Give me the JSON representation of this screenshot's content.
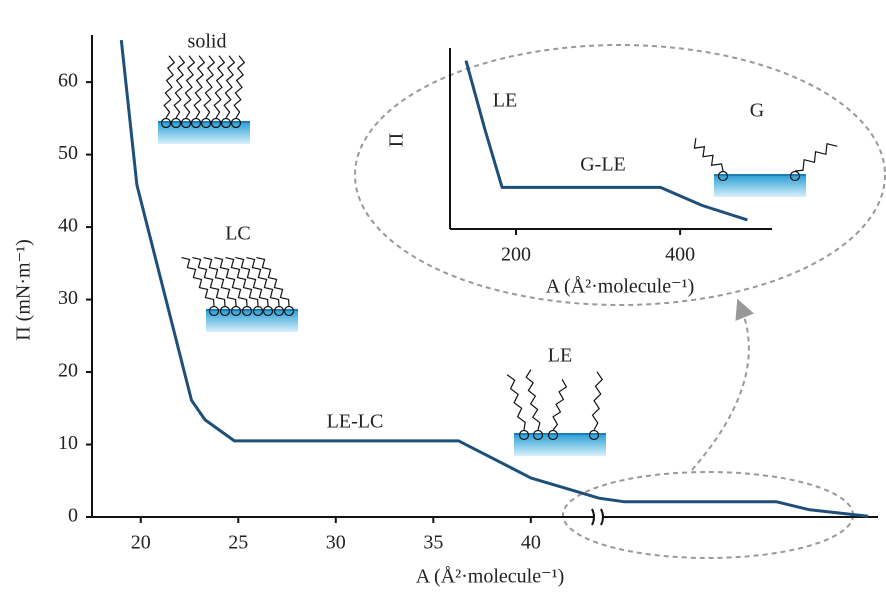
{
  "chart_data": [
    {
      "type": "line",
      "x_label": "A (Å²·molecule⁻¹)",
      "y_label": "Π (mN·m⁻¹)",
      "xlim": [
        17.5,
        57.8
      ],
      "ylim": [
        0,
        66.5
      ],
      "xticks": [
        20,
        25,
        30,
        35,
        40
      ],
      "yticks": [
        0,
        10,
        20,
        30,
        40,
        50,
        60
      ],
      "annotations": [
        "solid",
        "LC",
        "LE-LC",
        "LE"
      ],
      "series": [
        {
          "color": "#1d4f7a",
          "x": [
            19.0,
            19.8,
            22.6,
            23.3,
            24.8,
            36.3,
            40.0,
            43.5,
            44.8,
            52.6,
            54.3,
            57.3
          ],
          "values": [
            65.8,
            45.8,
            16.1,
            13.4,
            10.5,
            10.5,
            5.4,
            2.6,
            2.1,
            2.1,
            1.0,
            0.1
          ]
        }
      ]
    },
    {
      "type": "line",
      "x_label": "A (Å²·molecule⁻¹)",
      "y_label": "Π",
      "xlim": [
        119.5,
        512
      ],
      "ylim": [
        0,
        1
      ],
      "xticks": [
        200,
        400
      ],
      "annotations": [
        "LE",
        "G-LE",
        "G"
      ],
      "series": [
        {
          "color": "#1d4f7a",
          "x": [
            139,
            162,
            183,
            376,
            427,
            482
          ],
          "values": [
            0.93,
            0.55,
            0.23,
            0.23,
            0.13,
            0.05
          ]
        }
      ]
    }
  ]
}
